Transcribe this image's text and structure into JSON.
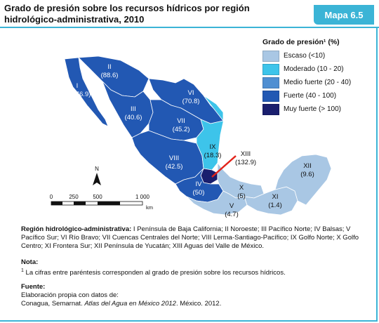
{
  "header": {
    "title": "Grado de presión sobre los recursos hídricos por región hidrológico-administrativa, 2010",
    "badge": "Mapa 6.5"
  },
  "legend": {
    "title": "Grado de presión¹ (%)",
    "items": [
      {
        "label": "Escaso (<10)",
        "color": "#a9c7e4"
      },
      {
        "label": "Moderado (10 - 20)",
        "color": "#3dc4ea"
      },
      {
        "label": "Medio fuerte (20 - 40)",
        "color": "#4f8fd2"
      },
      {
        "label": "Fuerte (40 - 100)",
        "color": "#2258b3"
      },
      {
        "label": "Muy fuerte (> 100)",
        "color": "#1a1f6e"
      }
    ]
  },
  "regions": [
    {
      "id": "I",
      "value": "(76.9)",
      "level": "Fuerte"
    },
    {
      "id": "II",
      "value": "(88.6)",
      "level": "Fuerte"
    },
    {
      "id": "III",
      "value": "(40.6)",
      "level": "Fuerte"
    },
    {
      "id": "IV",
      "value": "(50)",
      "level": "Fuerte"
    },
    {
      "id": "V",
      "value": "(4.7)",
      "level": "Escaso"
    },
    {
      "id": "VI",
      "value": "(70.8)",
      "level": "Fuerte"
    },
    {
      "id": "VII",
      "value": "(45.2)",
      "level": "Fuerte"
    },
    {
      "id": "VIII",
      "value": "(42.5)",
      "level": "Fuerte"
    },
    {
      "id": "IX",
      "value": "(18.3)",
      "level": "Moderado"
    },
    {
      "id": "X",
      "value": "(5)",
      "level": "Escaso"
    },
    {
      "id": "XI",
      "value": "(1.4)",
      "level": "Escaso"
    },
    {
      "id": "XII",
      "value": "(9.6)",
      "level": "Escaso"
    },
    {
      "id": "XIII",
      "value": "(132.9)",
      "level": "Muy fuerte"
    }
  ],
  "map": {
    "north_label": "N",
    "scale_labels": [
      "0",
      "250",
      "500",
      "1 000"
    ],
    "scale_unit": "km"
  },
  "notes": {
    "regions_heading": "Región hidrológico-administrativa:",
    "regions_text": " I Península de Baja California; II Noroeste; III Pacífico Norte; IV Balsas; V Pacífico Sur; VI Río Bravo; VII Cuencas Centrales del Norte; VIII Lerma-Santiago-Pacífico; IX Golfo Norte; X Golfo Centro; XI Frontera Sur; XII Península de Yucatán; XIII Aguas del Valle de México.",
    "nota_heading": "Nota:",
    "nota_marker": "1",
    "nota_text": " La cifras entre paréntesis corresponden al grado de presión sobre los recursos hídricos.",
    "fuente_heading": "Fuente:",
    "fuente_line1": "Elaboración propia con datos de:",
    "fuente_line2a": "Conagua, Semarnat. ",
    "fuente_line2b": "Atlas del Agua en México 2012",
    "fuente_line2c": ". México. 2012."
  }
}
